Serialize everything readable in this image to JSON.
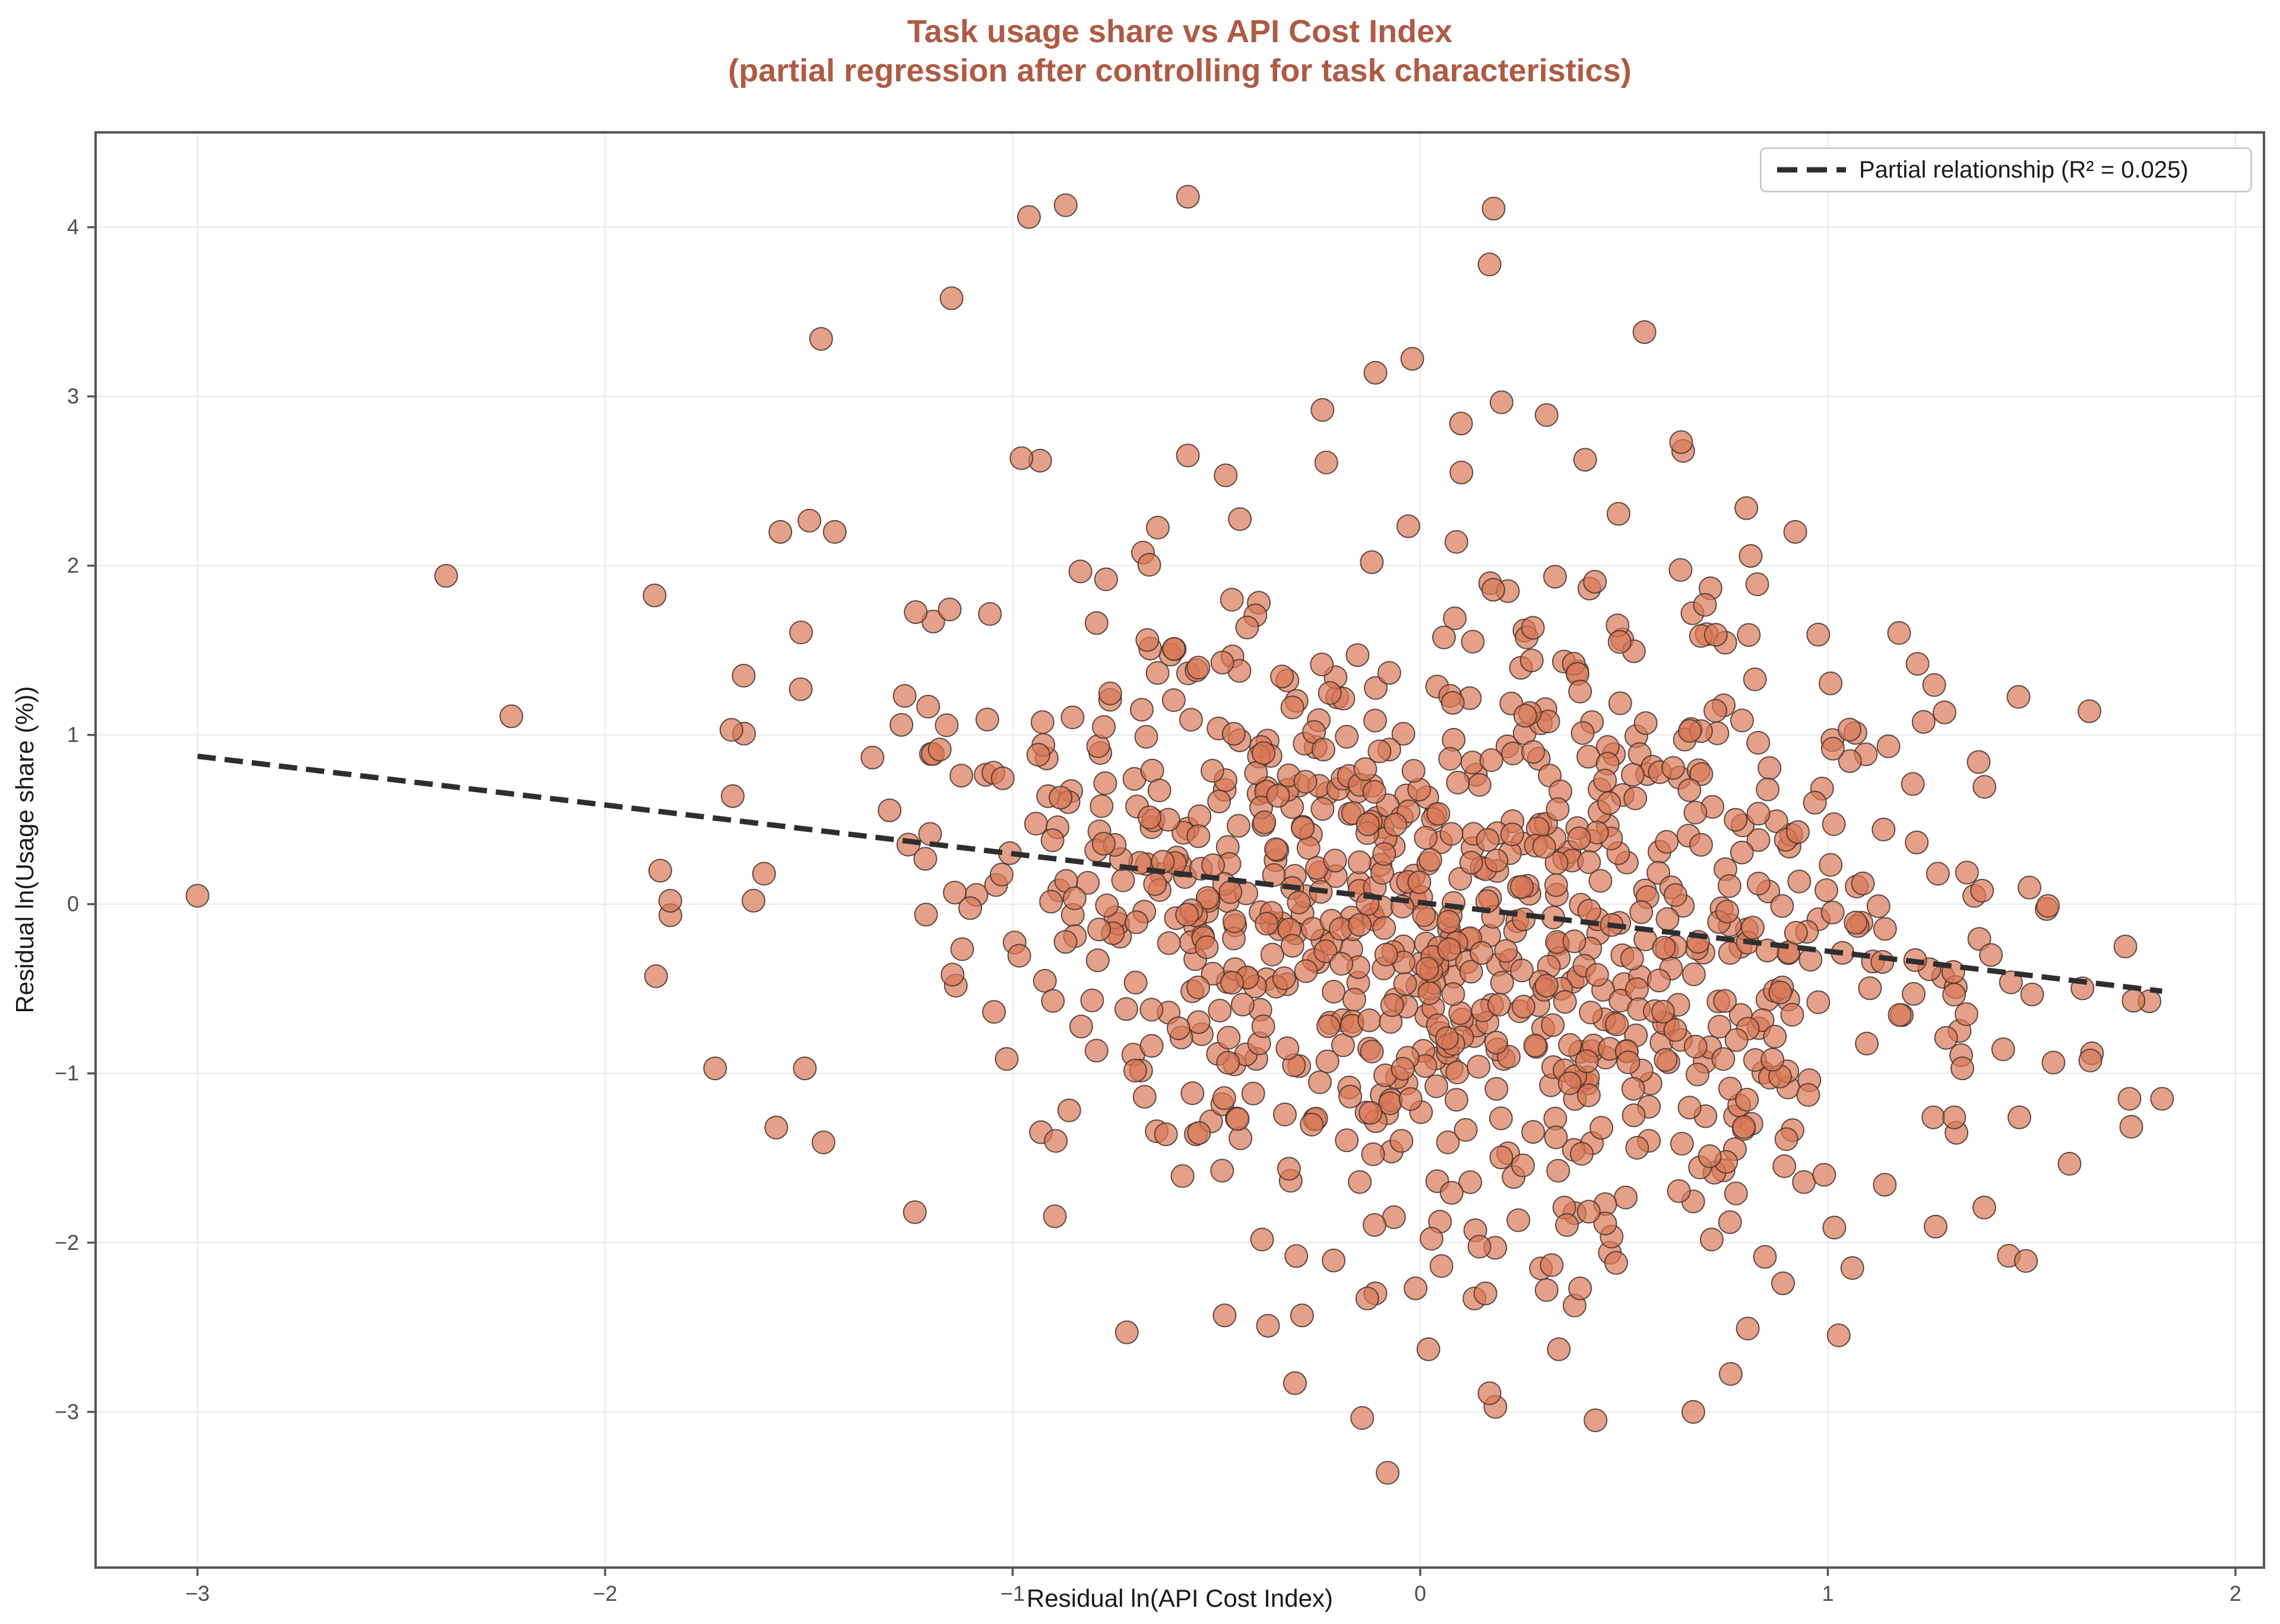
{
  "title": {
    "line1": "Task usage share vs API Cost Index",
    "line2": "(partial regression after controlling for task characteristics)"
  },
  "axes": {
    "xlabel": "Residual ln(API Cost Index)",
    "ylabel": "Residual ln(Usage share (%))"
  },
  "legend": {
    "label": "Partial relationship (R² = 0.025)"
  },
  "colors": {
    "title": "#AE5B44",
    "point_fill": "#D97757",
    "point_edge": "#46332B",
    "regression_line": "#2E2E2E",
    "grid": "#E9E9E9",
    "spine": "#565656",
    "tick_label": "#4D4D4D",
    "axis_label": "#1A1A1A",
    "legend_border": "#CCCCCC",
    "background": "#FFFFFF"
  },
  "chart_data": {
    "type": "scatter",
    "title": "Task usage share vs API Cost Index (partial regression after controlling for task characteristics)",
    "xlabel": "Residual ln(API Cost Index)",
    "ylabel": "Residual ln(Usage share (%))",
    "xlim": [
      -3.25,
      2.07
    ],
    "ylim": [
      -3.92,
      4.56
    ],
    "grid": true,
    "legend_position": "top-right",
    "x_ticks": [
      {
        "v": -3,
        "label": "−3"
      },
      {
        "v": -2,
        "label": "−2"
      },
      {
        "v": -1,
        "label": "−1"
      },
      {
        "v": 0,
        "label": "0"
      },
      {
        "v": 1,
        "label": "1"
      },
      {
        "v": 2,
        "label": "2"
      }
    ],
    "y_ticks": [
      {
        "v": -3,
        "label": "−3"
      },
      {
        "v": -2,
        "label": "−2"
      },
      {
        "v": -1,
        "label": "−1"
      },
      {
        "v": 0,
        "label": "0"
      },
      {
        "v": 1,
        "label": "1"
      },
      {
        "v": 2,
        "label": "2"
      },
      {
        "v": 3,
        "label": "3"
      },
      {
        "v": 4,
        "label": "4"
      }
    ],
    "regression": {
      "x_start": -3.0,
      "x_end": 1.82,
      "slope": -0.288,
      "intercept": 0.01,
      "r_squared": 0.025,
      "style": "dashed"
    },
    "n_points_approx": 1020,
    "notable_points": [
      [
        -3.0,
        0.05
      ],
      [
        -2.39,
        1.94
      ],
      [
        -2.23,
        1.11
      ],
      [
        -1.84,
        0.02
      ],
      [
        -1.57,
        2.2
      ],
      [
        -1.66,
        1.35
      ],
      [
        -1.52,
        1.27
      ],
      [
        -1.69,
        1.03
      ],
      [
        -1.61,
        0.18
      ],
      [
        -1.73,
        -0.97
      ],
      [
        -1.51,
        -0.97
      ],
      [
        -1.58,
        -1.32
      ],
      [
        -1.47,
        3.34
      ],
      [
        -1.15,
        3.58
      ],
      [
        -1.24,
        -1.82
      ],
      [
        -0.96,
        4.06
      ],
      [
        -0.87,
        4.13
      ],
      [
        -0.57,
        4.18
      ],
      [
        0.18,
        4.11
      ],
      [
        0.17,
        3.78
      ],
      [
        0.55,
        3.38
      ],
      [
        -0.11,
        3.14
      ],
      [
        0.31,
        2.89
      ],
      [
        -0.24,
        2.92
      ],
      [
        0.1,
        2.84
      ],
      [
        0.64,
        2.73
      ],
      [
        0.8,
        2.34
      ],
      [
        0.92,
        2.2
      ],
      [
        1.22,
        1.42
      ],
      [
        1.37,
        0.84
      ],
      [
        1.27,
        0.18
      ],
      [
        1.54,
        -0.01
      ],
      [
        1.73,
        -0.25
      ],
      [
        1.4,
        -0.3
      ],
      [
        1.75,
        -0.57
      ],
      [
        1.34,
        -0.65
      ],
      [
        1.29,
        -0.79
      ],
      [
        1.33,
        -0.97
      ],
      [
        1.31,
        -1.26
      ],
      [
        1.47,
        -1.26
      ],
      [
        1.74,
        -1.15
      ],
      [
        1.82,
        -1.15
      ],
      [
        -0.72,
        -2.53
      ],
      [
        -0.48,
        -2.43
      ],
      [
        -0.29,
        -2.43
      ],
      [
        -0.11,
        -2.3
      ],
      [
        -0.13,
        -2.33
      ],
      [
        0.16,
        -2.3
      ],
      [
        0.31,
        -2.28
      ],
      [
        0.89,
        -2.24
      ],
      [
        1.06,
        -2.15
      ],
      [
        0.02,
        -2.63
      ],
      [
        0.34,
        -2.63
      ],
      [
        0.17,
        -2.89
      ],
      [
        0.43,
        -3.05
      ],
      [
        0.67,
        -3.0
      ],
      [
        -0.08,
        -3.36
      ]
    ],
    "cloud": {
      "seed": 7,
      "n": 960,
      "x_mean": 0.12,
      "x_sd": 0.63,
      "x_range": [
        -2.05,
        1.8
      ],
      "slope": -0.29,
      "intercept": 0.0,
      "noise_sd": 1.0,
      "y_range": [
        -3.05,
        3.25
      ]
    },
    "marker": {
      "radius": 19,
      "fill": "#D97757",
      "fill_opacity": 0.7,
      "edge_width": 2
    }
  }
}
